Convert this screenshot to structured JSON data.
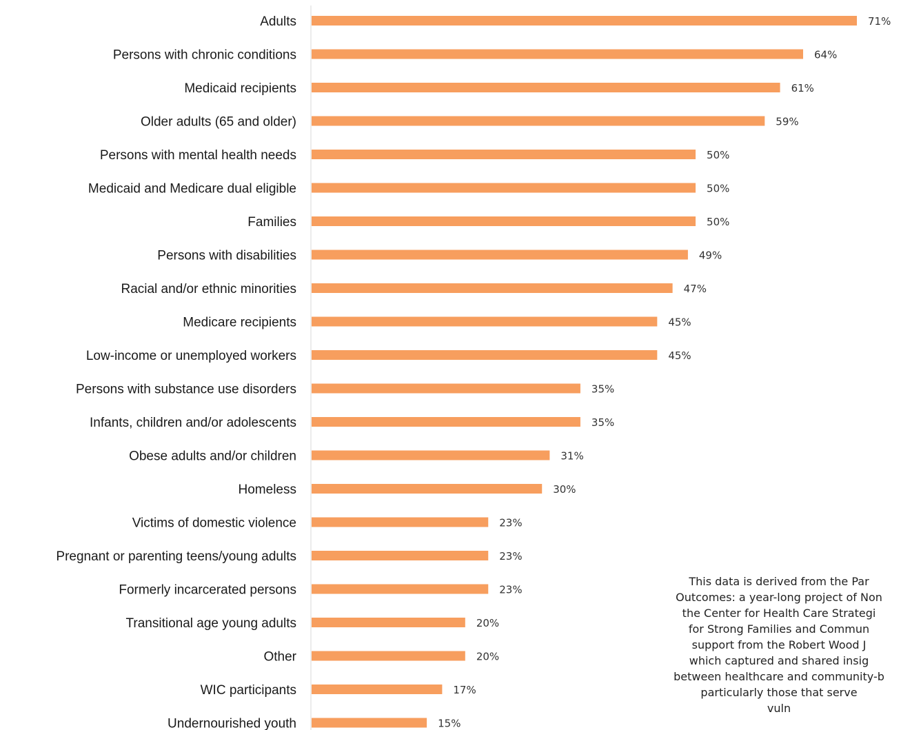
{
  "chart_data": {
    "type": "bar",
    "orientation": "horizontal",
    "categories": [
      "Adults",
      "Persons with chronic conditions",
      "Medicaid recipients",
      "Older adults (65 and older)",
      "Persons with mental health needs",
      "Medicaid and Medicare dual eligible",
      "Families",
      "Persons with disabilities",
      "Racial and/or ethnic minorities",
      "Medicare recipients",
      "Low-income or unemployed workers",
      "Persons with substance use disorders",
      "Infants, children and/or adolescents",
      "Obese adults and/or children",
      "Homeless",
      "Victims of domestic violence",
      "Pregnant or parenting teens/young adults",
      "Formerly incarcerated persons",
      "Transitional age young adults",
      "Other",
      "WIC participants",
      "Undernourished youth"
    ],
    "values": [
      71,
      64,
      61,
      59,
      50,
      50,
      50,
      49,
      47,
      45,
      45,
      35,
      35,
      31,
      30,
      23,
      23,
      23,
      20,
      20,
      17,
      15
    ],
    "value_labels": [
      "71%",
      "64%",
      "61%",
      "59%",
      "50%",
      "50%",
      "50%",
      "49%",
      "47%",
      "45%",
      "45%",
      "35%",
      "35%",
      "31%",
      "30%",
      "23%",
      "23%",
      "23%",
      "20%",
      "20%",
      "17%",
      "15%"
    ],
    "unit": "%",
    "xlim": [
      0,
      71
    ],
    "grid": false,
    "bar_color": "#F79E5E"
  },
  "note": "This data is derived from the Par\nOutcomes: a year-long project of Non\nthe Center for Health Care Strategi\nfor Strong Families and Commun\nsupport from the Robert Wood J\nwhich captured and shared insig\nbetween healthcare and community-b\nparticularly those that serve\nvuln"
}
